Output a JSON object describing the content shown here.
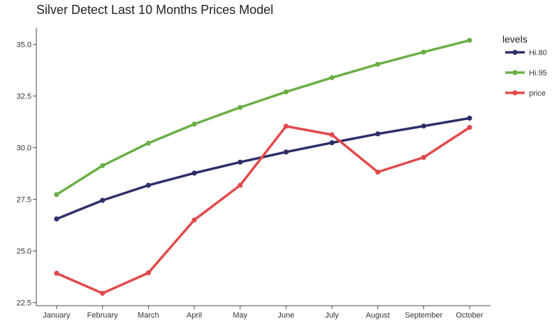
{
  "chart_data": {
    "type": "line",
    "title": "Silver Detect Last 10 Months Prices Model",
    "xlabel": "",
    "ylabel": "",
    "categories": [
      "January",
      "February",
      "March",
      "April",
      "May",
      "June",
      "July",
      "August",
      "September",
      "October"
    ],
    "ylim": [
      22.35,
      35.8
    ],
    "yticks": [
      "22.5",
      "25.0",
      "27.5",
      "30.0",
      "32.5",
      "35.0"
    ],
    "legend": {
      "title": "levels",
      "placement": "top-right"
    },
    "grid": false,
    "series": [
      {
        "name": "Hi.80",
        "color": "#2e2e6a",
        "values": [
          26.55,
          27.45,
          28.18,
          28.77,
          29.3,
          29.79,
          30.24,
          30.67,
          31.05,
          31.43
        ]
      },
      {
        "name": "Hi.95",
        "color": "#6aaf46",
        "values": [
          27.73,
          29.13,
          30.22,
          31.14,
          31.95,
          32.7,
          33.39,
          34.04,
          34.63,
          35.2
        ]
      },
      {
        "name": "price",
        "color": "#e2494b",
        "values": [
          23.92,
          22.95,
          23.94,
          26.5,
          28.18,
          31.04,
          30.63,
          28.82,
          29.53,
          30.98
        ]
      }
    ]
  }
}
